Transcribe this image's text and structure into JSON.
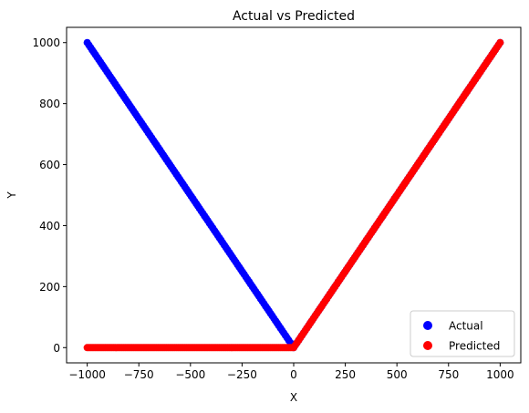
{
  "chart_data": {
    "type": "scatter",
    "title": "Actual vs Predicted",
    "xlabel": "X",
    "ylabel": "Y",
    "xlim": [
      -1100,
      1100
    ],
    "ylim": [
      -50,
      1050
    ],
    "xticks": [
      -1000,
      -750,
      -500,
      -250,
      0,
      250,
      500,
      750,
      1000
    ],
    "yticks": [
      0,
      200,
      400,
      600,
      800,
      1000
    ],
    "grid": false,
    "legend": "lower-right",
    "series": [
      {
        "name": "Actual",
        "color": "#0000ff",
        "marker": "circle",
        "x_range": [
          -1000,
          1000
        ],
        "relation": "y = |x|"
      },
      {
        "name": "Predicted",
        "color": "#ff0000",
        "marker": "circle",
        "x_range": [
          -1000,
          1000
        ],
        "relation": "y = max(0, x)"
      }
    ]
  }
}
